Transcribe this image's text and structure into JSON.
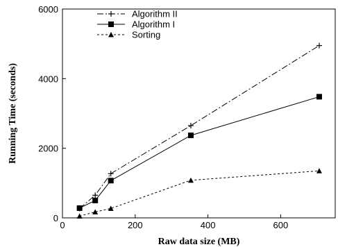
{
  "chart_data": {
    "type": "line",
    "title": "",
    "xlabel": "Raw data size (MB)",
    "ylabel": "Running Time (seconds)",
    "xlim": [
      0,
      750
    ],
    "ylim": [
      0,
      6000
    ],
    "xticks": [
      0,
      200,
      400,
      600
    ],
    "yticks": [
      0,
      2000,
      4000,
      6000
    ],
    "grid": false,
    "legend": "top-left",
    "series": [
      {
        "name": "Algorithm II",
        "line_style": "dash-dot",
        "marker": "plus",
        "x": [
          47,
          90,
          133,
          353,
          706
        ],
        "y": [
          270,
          650,
          1270,
          2650,
          4950
        ]
      },
      {
        "name": "Algorithm I",
        "line_style": "solid",
        "marker": "square",
        "x": [
          47,
          90,
          133,
          353,
          706
        ],
        "y": [
          280,
          500,
          1070,
          2370,
          3480
        ]
      },
      {
        "name": "Sorting",
        "line_style": "dotted",
        "marker": "triangle",
        "x": [
          47,
          90,
          133,
          353,
          706
        ],
        "y": [
          50,
          170,
          270,
          1080,
          1350
        ]
      }
    ]
  }
}
